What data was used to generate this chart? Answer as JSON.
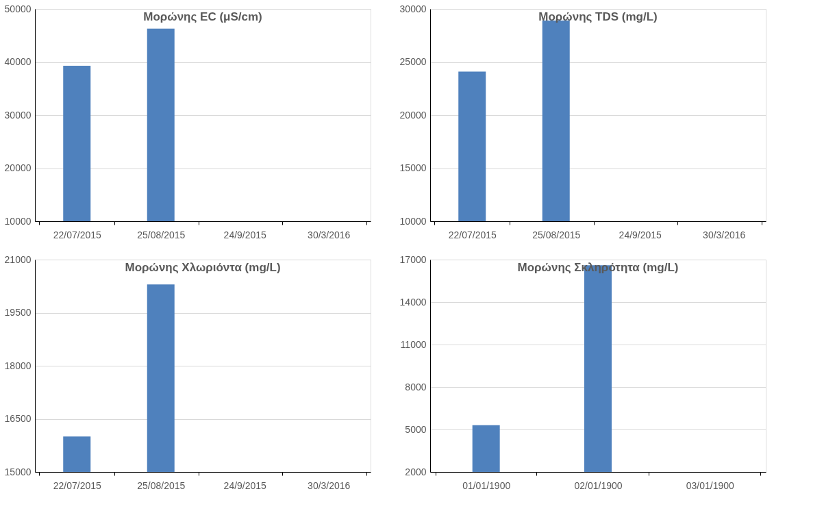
{
  "chart_data": [
    {
      "type": "bar",
      "title": "Μορώνης EC (μS/cm)",
      "categories": [
        "22/07/2015",
        "25/08/2015",
        "24/9/2015",
        "30/3/2016"
      ],
      "values": [
        39300,
        46300,
        null,
        null
      ],
      "color": "#4f81bd",
      "ylim": [
        10000,
        50000
      ],
      "yticks": [
        10000,
        20000,
        30000,
        40000,
        50000
      ],
      "grid": "y"
    },
    {
      "type": "bar",
      "title": "Μορώνης TDS (mg/L)",
      "categories": [
        "22/07/2015",
        "25/08/2015",
        "24/9/2015",
        "30/3/2016"
      ],
      "values": [
        24100,
        28900,
        null,
        null
      ],
      "color": "#4f81bd",
      "ylim": [
        10000,
        30000
      ],
      "yticks": [
        10000,
        15000,
        20000,
        25000,
        30000
      ],
      "grid": "y"
    },
    {
      "type": "bar",
      "title": "Μορώνης Χλωριόντα (mg/L)",
      "categories": [
        "22/07/2015",
        "25/08/2015",
        "24/9/2015",
        "30/3/2016"
      ],
      "values": [
        16000,
        20300,
        null,
        null
      ],
      "color": "#4f81bd",
      "ylim": [
        15000,
        21000
      ],
      "yticks": [
        15000,
        16500,
        18000,
        19500,
        21000
      ],
      "grid": "y"
    },
    {
      "type": "bar",
      "title": "Μορώνης Σκληρότητα (mg/L)",
      "categories": [
        "01/01/1900",
        "02/01/1900",
        "03/01/1900"
      ],
      "values": [
        5300,
        16600,
        null
      ],
      "color": "#4f81bd",
      "ylim": [
        2000,
        17000
      ],
      "yticks": [
        2000,
        5000,
        8000,
        11000,
        14000,
        17000
      ],
      "grid": "y"
    }
  ]
}
